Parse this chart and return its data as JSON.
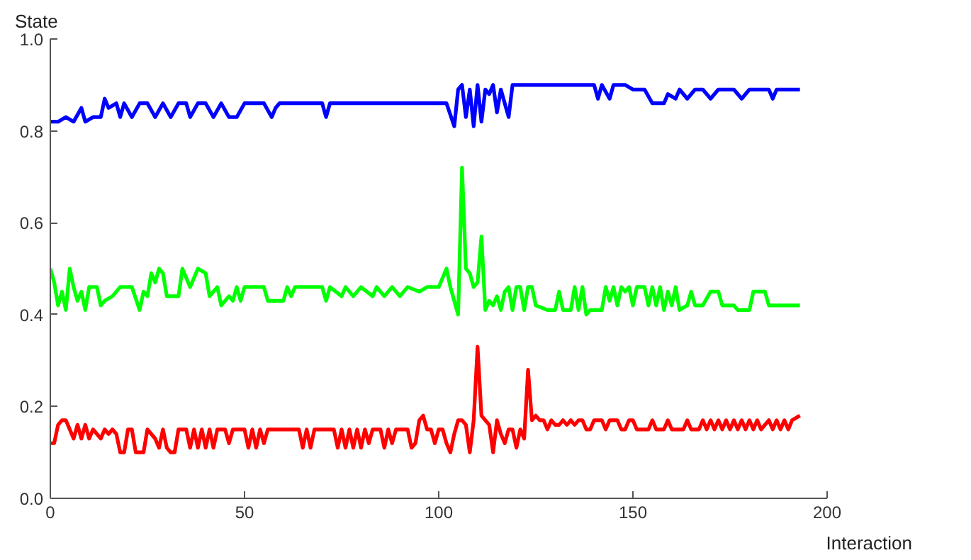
{
  "chart_data": {
    "type": "line",
    "xlabel": "Interaction",
    "ylabel": "State",
    "xlim": [
      0,
      200
    ],
    "ylim": [
      0,
      1
    ],
    "xticks": [
      0,
      50,
      100,
      150,
      200
    ],
    "yticks": [
      {
        "value": 0,
        "label": "0.0"
      },
      {
        "value": 0.2,
        "label": "0.2"
      },
      {
        "value": 0.4,
        "label": "0.4"
      },
      {
        "value": 0.6,
        "label": "0.6"
      },
      {
        "value": 0.8,
        "label": "0.8"
      },
      {
        "value": 1,
        "label": "1.0"
      }
    ],
    "grid": false,
    "line_style": "solid",
    "marker": "none",
    "series": [
      {
        "color": "#0000ff",
        "x": [
          0,
          2,
          4,
          6,
          8,
          9,
          11,
          13,
          14,
          15,
          17,
          18,
          19,
          21,
          23,
          25,
          27,
          29,
          31,
          33,
          35,
          36,
          38,
          40,
          42,
          44,
          46,
          48,
          50,
          55,
          57,
          58,
          59,
          70,
          71,
          72,
          102,
          104,
          105,
          106,
          107,
          108,
          109,
          110,
          111,
          112,
          113,
          114,
          115,
          116,
          117,
          118,
          119,
          125,
          130,
          135,
          140,
          141,
          142,
          144,
          145,
          148,
          150,
          153,
          155,
          158,
          159,
          161,
          162,
          164,
          166,
          168,
          170,
          172,
          176,
          178,
          180,
          185,
          186,
          187,
          193
        ],
        "values": [
          0.82,
          0.82,
          0.83,
          0.82,
          0.85,
          0.82,
          0.83,
          0.83,
          0.87,
          0.85,
          0.86,
          0.83,
          0.86,
          0.83,
          0.86,
          0.86,
          0.83,
          0.86,
          0.83,
          0.86,
          0.86,
          0.83,
          0.86,
          0.86,
          0.83,
          0.86,
          0.83,
          0.83,
          0.86,
          0.86,
          0.83,
          0.85,
          0.86,
          0.86,
          0.83,
          0.86,
          0.86,
          0.81,
          0.89,
          0.9,
          0.83,
          0.89,
          0.81,
          0.9,
          0.82,
          0.89,
          0.88,
          0.9,
          0.84,
          0.89,
          0.86,
          0.83,
          0.9,
          0.9,
          0.9,
          0.9,
          0.9,
          0.87,
          0.9,
          0.87,
          0.9,
          0.9,
          0.89,
          0.89,
          0.86,
          0.86,
          0.88,
          0.87,
          0.89,
          0.87,
          0.89,
          0.89,
          0.87,
          0.89,
          0.89,
          0.87,
          0.89,
          0.89,
          0.87,
          0.89,
          0.89
        ]
      },
      {
        "color": "#00ff00",
        "x": [
          0,
          1,
          2,
          3,
          4,
          5,
          6,
          7,
          8,
          9,
          10,
          12,
          13,
          14,
          16,
          18,
          20,
          21,
          23,
          24,
          25,
          26,
          27,
          28,
          29,
          30,
          33,
          34,
          35,
          36,
          38,
          40,
          41,
          43,
          44,
          46,
          47,
          48,
          49,
          50,
          55,
          56,
          60,
          61,
          62,
          63,
          70,
          71,
          72,
          75,
          76,
          78,
          80,
          83,
          84,
          86,
          88,
          90,
          92,
          95,
          97,
          100,
          102,
          103,
          105,
          106,
          107,
          108,
          109,
          110,
          111,
          112,
          113,
          114,
          115,
          116,
          117,
          118,
          119,
          120,
          121,
          122,
          123,
          124,
          125,
          128,
          130,
          131,
          132,
          134,
          135,
          136,
          137,
          138,
          139,
          142,
          143,
          144,
          145,
          146,
          147,
          148,
          149,
          150,
          151,
          153,
          154,
          155,
          156,
          157,
          158,
          159,
          160,
          161,
          162,
          164,
          165,
          166,
          168,
          170,
          172,
          173,
          176,
          177,
          180,
          181,
          184,
          185,
          190,
          193
        ],
        "values": [
          0.5,
          0.47,
          0.42,
          0.45,
          0.41,
          0.5,
          0.46,
          0.43,
          0.45,
          0.41,
          0.46,
          0.46,
          0.42,
          0.43,
          0.44,
          0.46,
          0.46,
          0.46,
          0.41,
          0.45,
          0.44,
          0.49,
          0.47,
          0.5,
          0.49,
          0.44,
          0.44,
          0.5,
          0.48,
          0.46,
          0.5,
          0.49,
          0.44,
          0.46,
          0.42,
          0.44,
          0.43,
          0.46,
          0.43,
          0.46,
          0.46,
          0.43,
          0.43,
          0.46,
          0.44,
          0.46,
          0.46,
          0.43,
          0.46,
          0.44,
          0.46,
          0.44,
          0.46,
          0.44,
          0.46,
          0.44,
          0.46,
          0.44,
          0.46,
          0.45,
          0.46,
          0.46,
          0.5,
          0.46,
          0.4,
          0.72,
          0.5,
          0.49,
          0.46,
          0.47,
          0.57,
          0.41,
          0.43,
          0.42,
          0.44,
          0.41,
          0.45,
          0.46,
          0.41,
          0.46,
          0.46,
          0.41,
          0.46,
          0.46,
          0.42,
          0.41,
          0.41,
          0.45,
          0.41,
          0.41,
          0.46,
          0.41,
          0.46,
          0.4,
          0.41,
          0.41,
          0.46,
          0.43,
          0.46,
          0.42,
          0.46,
          0.45,
          0.46,
          0.42,
          0.46,
          0.46,
          0.42,
          0.46,
          0.42,
          0.46,
          0.41,
          0.45,
          0.42,
          0.46,
          0.41,
          0.42,
          0.45,
          0.42,
          0.42,
          0.45,
          0.45,
          0.42,
          0.42,
          0.41,
          0.41,
          0.45,
          0.45,
          0.42,
          0.42,
          0.42
        ]
      },
      {
        "color": "#ff0000",
        "x": [
          0,
          1,
          2,
          3,
          4,
          5,
          6,
          7,
          8,
          9,
          10,
          11,
          12,
          13,
          14,
          15,
          16,
          17,
          18,
          19,
          20,
          21,
          22,
          24,
          25,
          26,
          27,
          28,
          29,
          30,
          31,
          32,
          33,
          35,
          36,
          37,
          38,
          39,
          40,
          41,
          42,
          43,
          45,
          46,
          47,
          50,
          51,
          52,
          53,
          54,
          55,
          56,
          60,
          64,
          65,
          66,
          67,
          68,
          70,
          73,
          74,
          75,
          76,
          77,
          78,
          79,
          80,
          81,
          82,
          83,
          85,
          86,
          87,
          88,
          89,
          92,
          93,
          94,
          95,
          96,
          97,
          98,
          99,
          100,
          101,
          102,
          103,
          104,
          105,
          106,
          107,
          108,
          109,
          110,
          111,
          112,
          113,
          114,
          115,
          116,
          117,
          118,
          119,
          120,
          121,
          122,
          123,
          124,
          125,
          126,
          127,
          128,
          129,
          130,
          131,
          132,
          133,
          134,
          135,
          136,
          137,
          138,
          139,
          140,
          142,
          143,
          144,
          146,
          147,
          148,
          149,
          150,
          151,
          154,
          155,
          156,
          158,
          159,
          160,
          163,
          164,
          165,
          167,
          168,
          169,
          170,
          171,
          172,
          173,
          174,
          175,
          176,
          177,
          178,
          179,
          180,
          181,
          182,
          183,
          185,
          186,
          187,
          188,
          189,
          190,
          191,
          193
        ],
        "values": [
          0.12,
          0.12,
          0.16,
          0.17,
          0.17,
          0.15,
          0.13,
          0.16,
          0.13,
          0.16,
          0.13,
          0.15,
          0.14,
          0.13,
          0.15,
          0.14,
          0.15,
          0.14,
          0.1,
          0.1,
          0.15,
          0.15,
          0.1,
          0.1,
          0.15,
          0.14,
          0.13,
          0.11,
          0.15,
          0.11,
          0.1,
          0.1,
          0.15,
          0.15,
          0.11,
          0.15,
          0.11,
          0.15,
          0.11,
          0.15,
          0.11,
          0.15,
          0.15,
          0.12,
          0.15,
          0.15,
          0.11,
          0.15,
          0.11,
          0.15,
          0.12,
          0.15,
          0.15,
          0.15,
          0.11,
          0.15,
          0.11,
          0.15,
          0.15,
          0.15,
          0.11,
          0.15,
          0.11,
          0.15,
          0.11,
          0.15,
          0.11,
          0.15,
          0.12,
          0.15,
          0.15,
          0.11,
          0.15,
          0.12,
          0.15,
          0.15,
          0.11,
          0.12,
          0.17,
          0.18,
          0.15,
          0.15,
          0.12,
          0.15,
          0.15,
          0.12,
          0.1,
          0.14,
          0.17,
          0.17,
          0.16,
          0.1,
          0.17,
          0.33,
          0.18,
          0.17,
          0.16,
          0.1,
          0.17,
          0.14,
          0.12,
          0.15,
          0.15,
          0.11,
          0.15,
          0.13,
          0.28,
          0.17,
          0.18,
          0.17,
          0.17,
          0.15,
          0.17,
          0.16,
          0.16,
          0.17,
          0.16,
          0.17,
          0.16,
          0.17,
          0.17,
          0.15,
          0.15,
          0.17,
          0.17,
          0.15,
          0.17,
          0.17,
          0.15,
          0.15,
          0.17,
          0.17,
          0.15,
          0.15,
          0.17,
          0.15,
          0.15,
          0.17,
          0.15,
          0.15,
          0.17,
          0.15,
          0.15,
          0.17,
          0.15,
          0.17,
          0.15,
          0.17,
          0.15,
          0.17,
          0.15,
          0.17,
          0.15,
          0.17,
          0.15,
          0.17,
          0.15,
          0.17,
          0.15,
          0.17,
          0.15,
          0.17,
          0.15,
          0.17,
          0.15,
          0.17,
          0.18
        ]
      }
    ]
  }
}
